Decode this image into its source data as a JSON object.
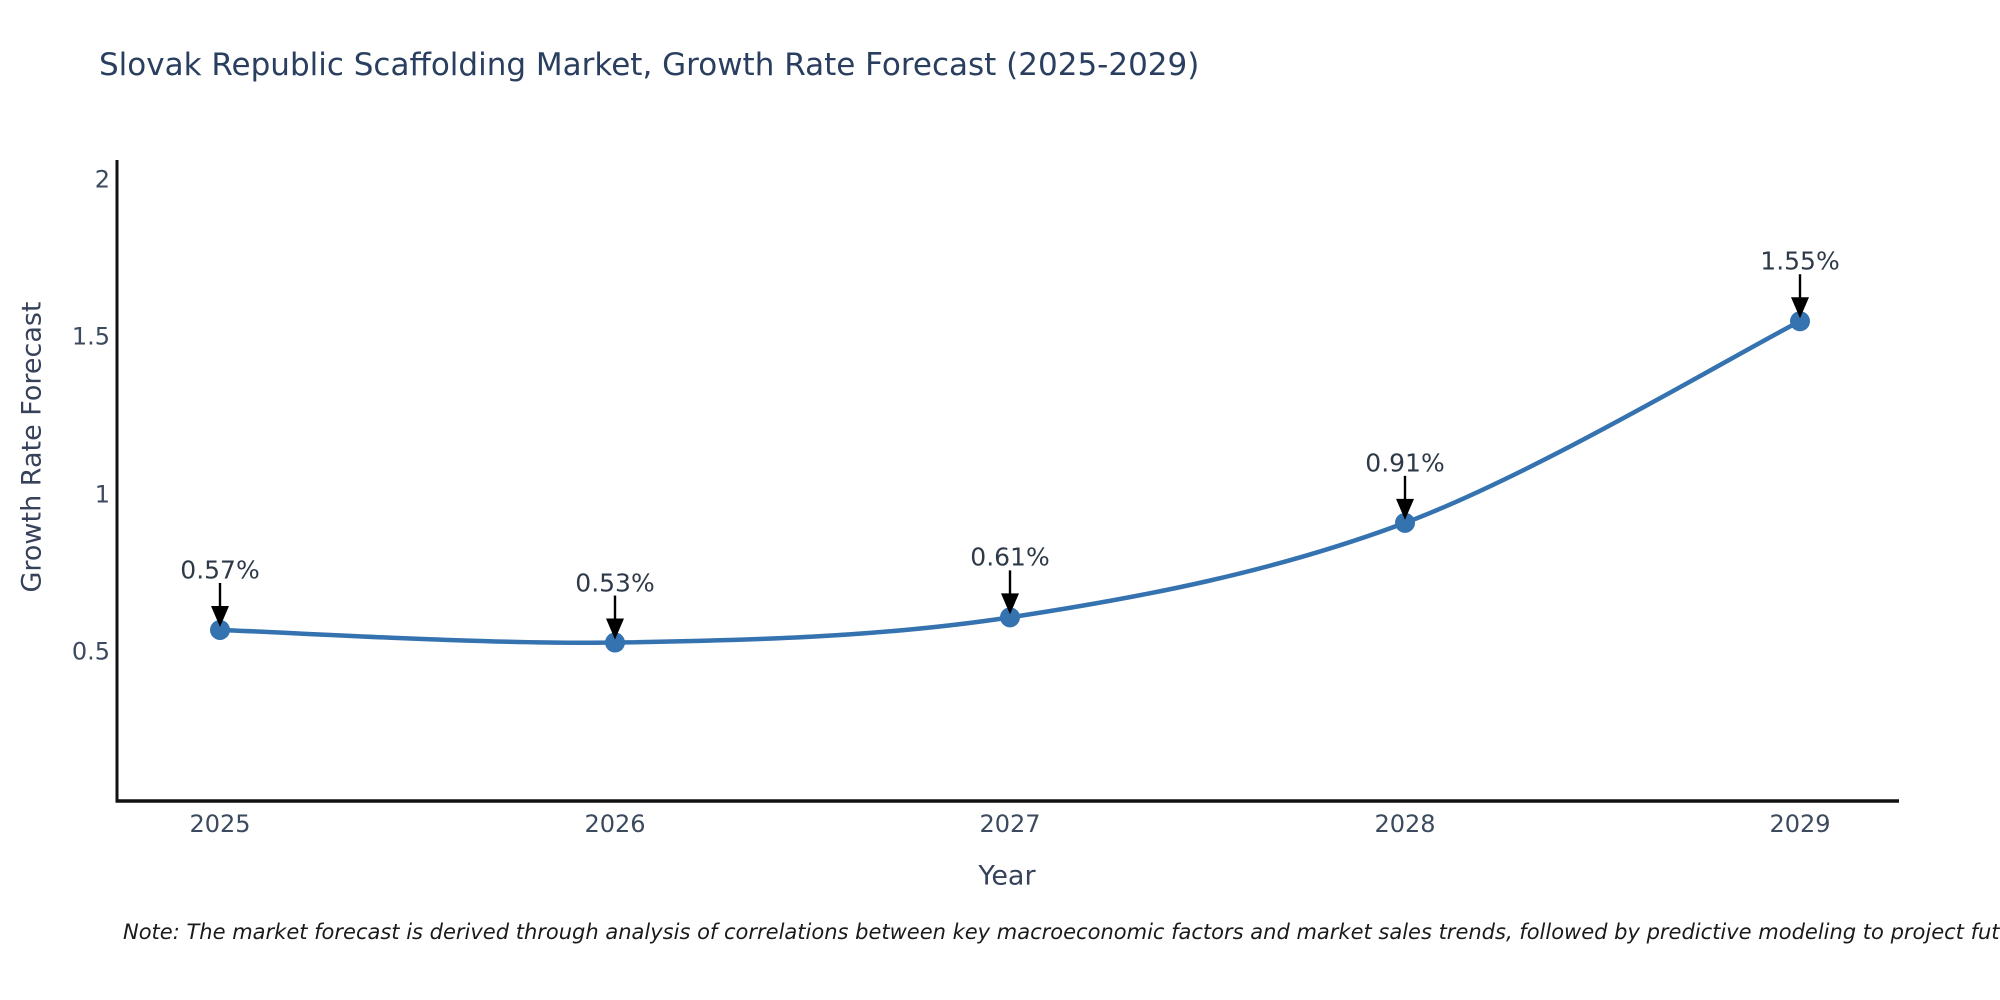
{
  "page": {
    "background": "#ffffff"
  },
  "chart_data": {
    "type": "line",
    "title": "Slovak Republic Scaffolding Market, Growth Rate Forecast (2025-2029)",
    "categories": [
      "2025",
      "2026",
      "2027",
      "2028",
      "2029"
    ],
    "x": [
      2025,
      2026,
      2027,
      2028,
      2029
    ],
    "series": [
      {
        "name": "Growth Rate Forecast",
        "values": [
          0.57,
          0.53,
          0.61,
          0.91,
          1.55
        ]
      }
    ],
    "values": [
      0.57,
      0.53,
      0.61,
      0.91,
      1.55
    ],
    "point_labels": [
      "0.57%",
      "0.53%",
      "0.61%",
      "0.91%",
      "1.55%"
    ],
    "xlabel": "Year",
    "ylabel": "Growth Rate Forecast",
    "ytick_labels": [
      "0.5",
      "1",
      "1.5",
      "2"
    ],
    "ytick_values": [
      0.5,
      1,
      1.5,
      2
    ],
    "ylim": [
      0.03,
      2.08
    ],
    "grid": false,
    "legend": false,
    "marker": "circle",
    "line_shape": "smooth",
    "annotation_style": "value-label-with-down-arrow"
  },
  "note": {
    "text": "Note: The market forecast is derived through analysis of correlations between key macroeconomic factors and market sales trends, followed by predictive modeling to project future sales"
  },
  "colors": {
    "line": "#3572b0",
    "marker": "#3572b0",
    "axis": "#111111",
    "arrow": "#000000",
    "title_text": "#2a3f5f",
    "tick_text": "#3b4a5e",
    "point_label_text": "#2f3a49",
    "note_text": "#1a1a1a"
  }
}
